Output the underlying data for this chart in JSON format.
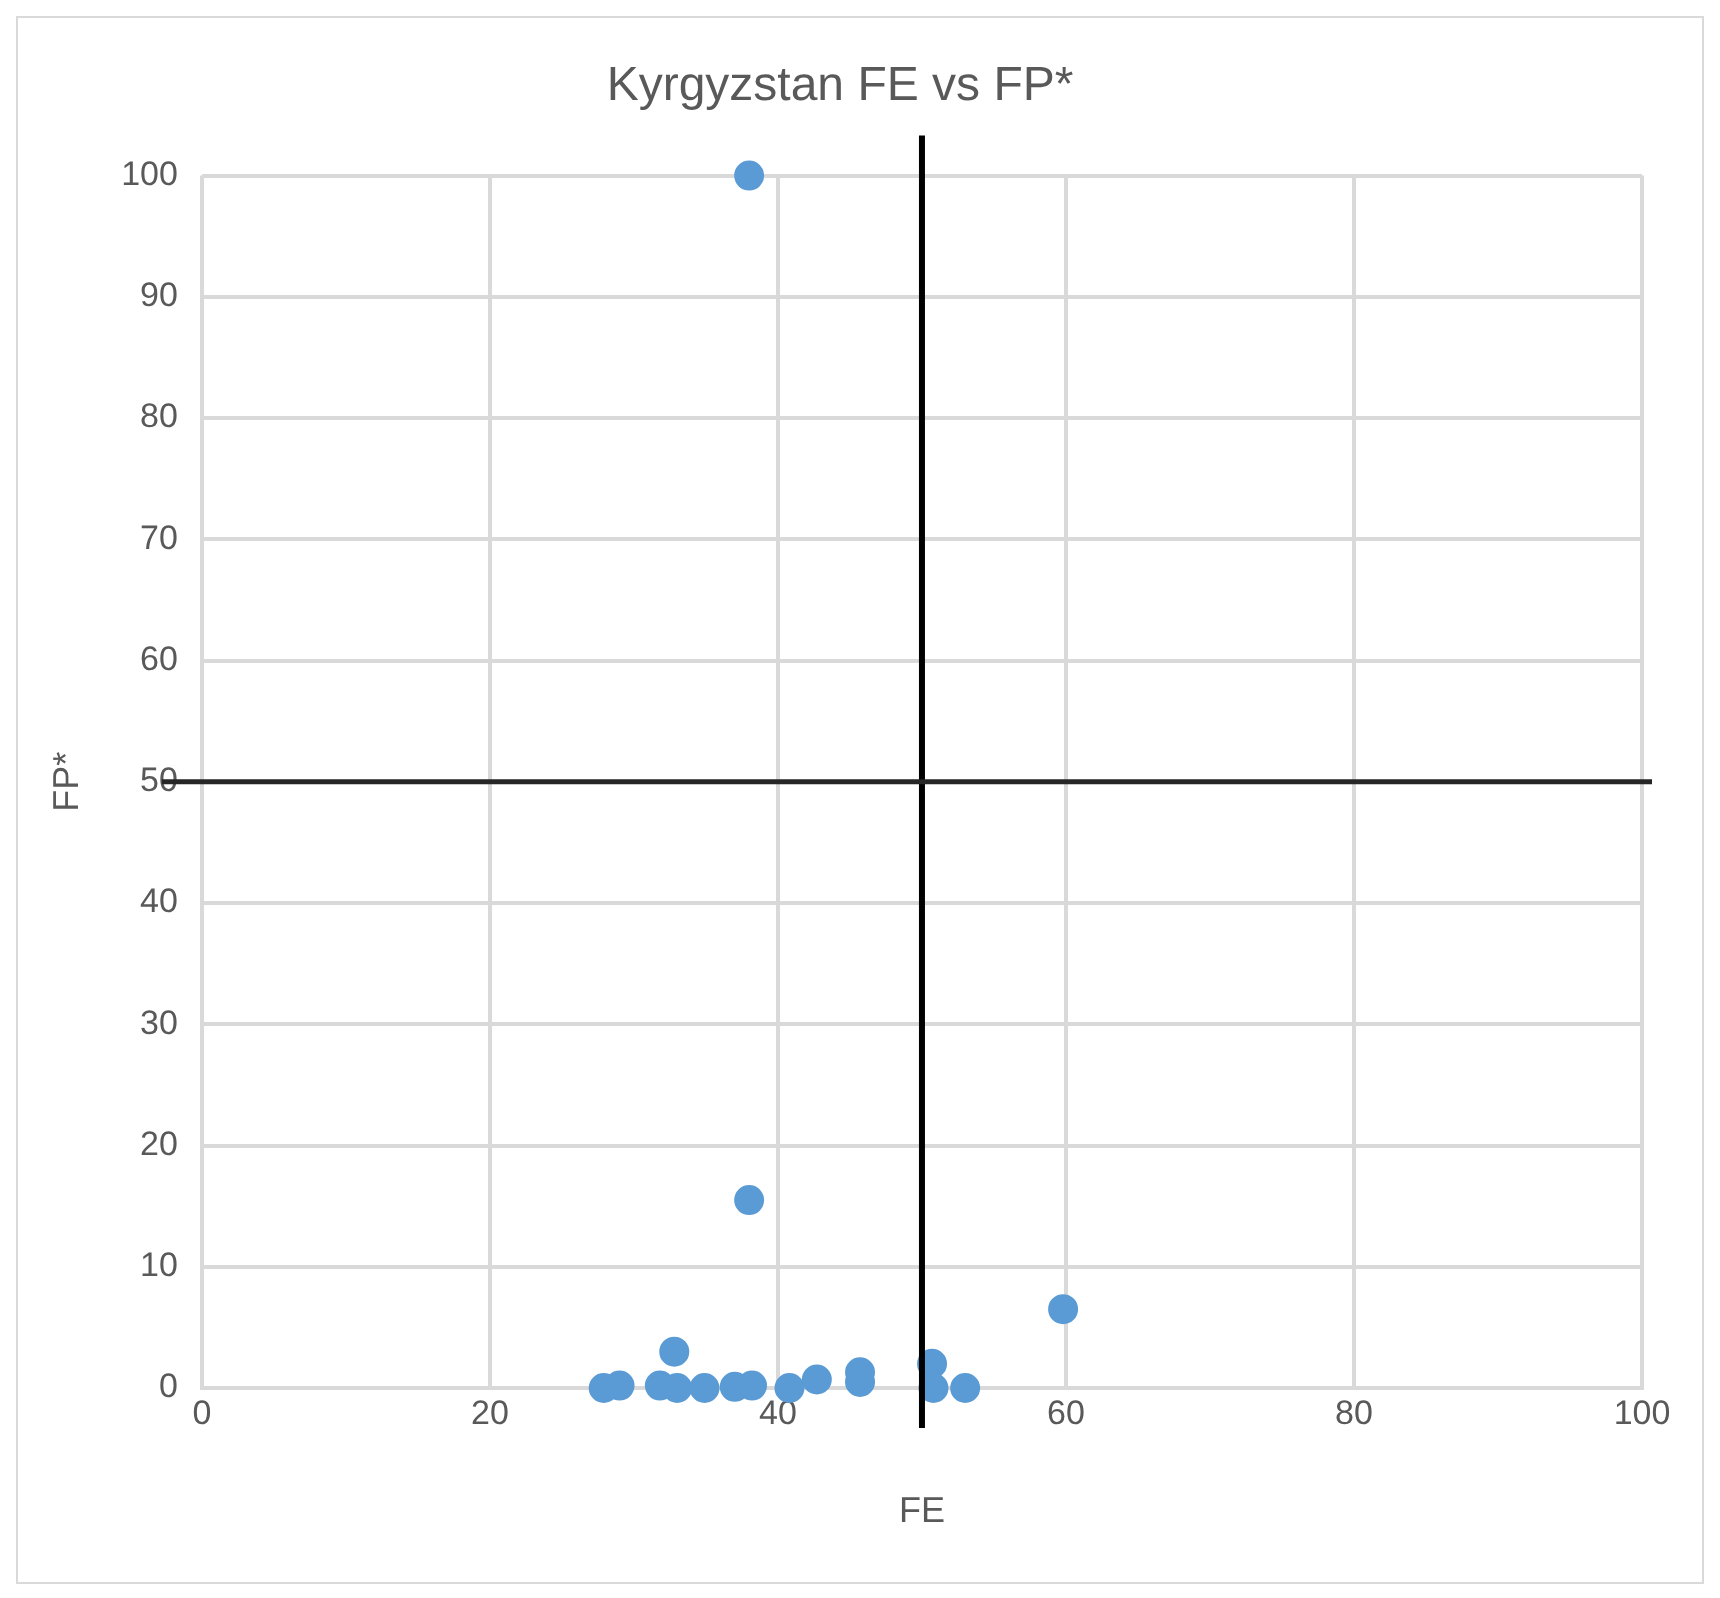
{
  "chart_data": {
    "type": "scatter",
    "title": "Kyrgyzstan FE vs FP*",
    "xlabel": "FE",
    "ylabel": "FP*",
    "series": [
      {
        "color": "#5b9bd5",
        "x": [
          27.9,
          29,
          31.8,
          32.8,
          33,
          34.9,
          37,
          38,
          38,
          38.2,
          40.8,
          42.7,
          45.7,
          45.7,
          50.7,
          50.8,
          53,
          59.8
        ],
        "values": [
          0,
          0.2,
          0.2,
          3,
          0,
          0,
          0.1,
          100,
          15.5,
          0.2,
          0,
          0.7,
          1.3,
          0.5,
          2,
          0,
          0,
          6.5
        ]
      }
    ],
    "xlim": [
      0,
      100
    ],
    "xticks": [
      0,
      20,
      40,
      60,
      80,
      100
    ],
    "ylim": [
      0,
      100
    ],
    "yticks": [
      0,
      10,
      20,
      30,
      40,
      50,
      60,
      70,
      80,
      90,
      100
    ],
    "grid": true,
    "legend": false,
    "marker": "circle",
    "ref_lines": [
      {
        "axis": "x",
        "value": 50,
        "color": "#000000"
      },
      {
        "axis": "y",
        "value": 50,
        "color": "#262626"
      }
    ]
  }
}
